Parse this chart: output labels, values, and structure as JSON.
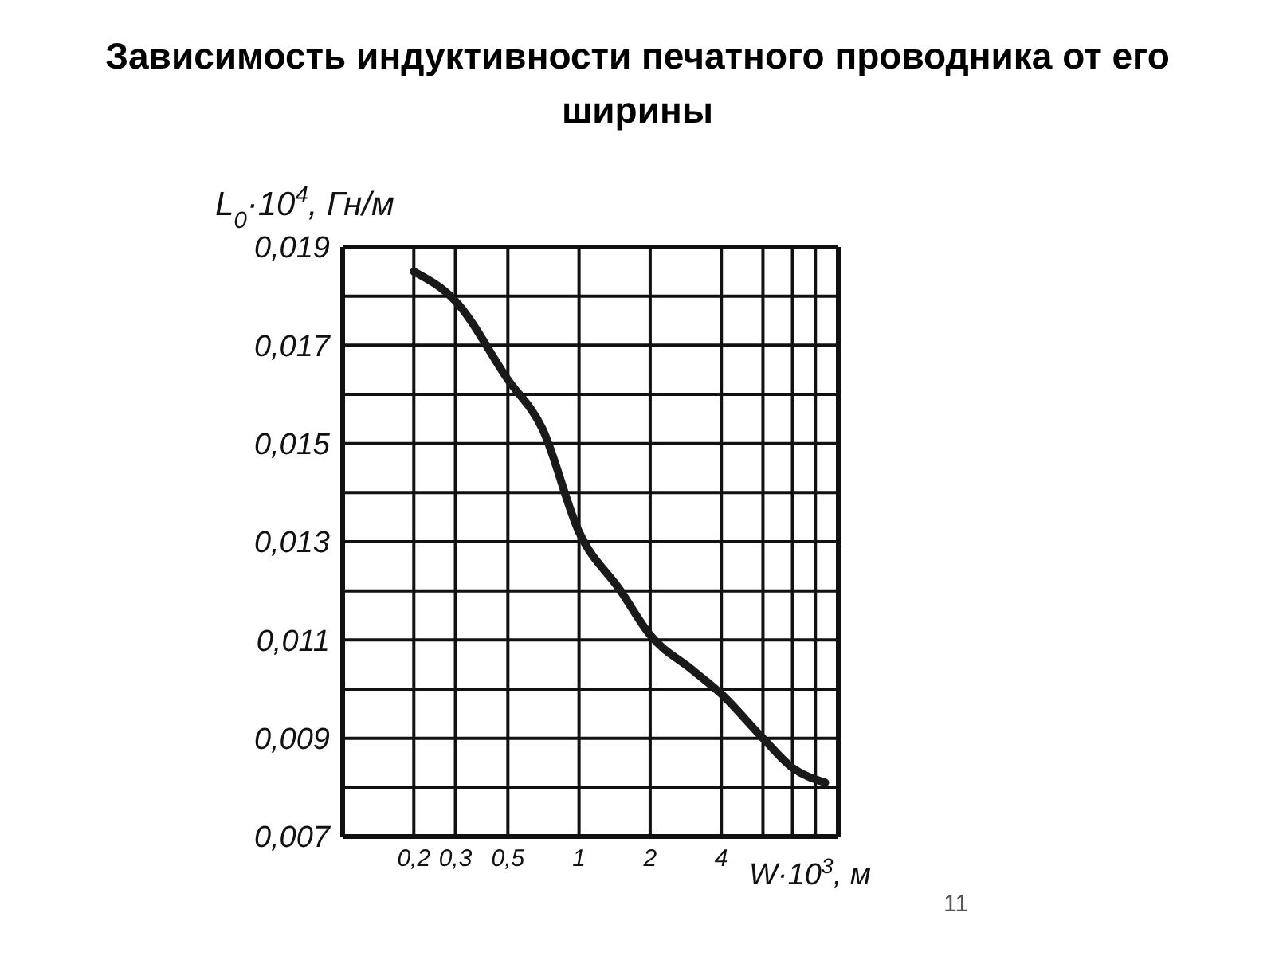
{
  "chart_data": {
    "type": "line",
    "title": "Зависимость индуктивности печатного проводника от его ширины",
    "xlabel": "W·10$^{3}$, м",
    "ylabel": "L$_{0}$·10$^{4}$, Гн/м",
    "log": "x",
    "grid": true,
    "legend": false,
    "marker": "none",
    "line_style": "solid",
    "x": [
      0.2,
      0.3,
      0.5,
      0.7,
      1,
      1.5,
      2,
      3,
      4,
      6,
      8,
      11
    ],
    "series": [
      {
        "color": "#1a1a1a",
        "values": [
          0.0185,
          0.0179,
          0.0163,
          0.0153,
          0.0132,
          0.012,
          0.0111,
          0.0104,
          0.0099,
          0.009,
          0.0084,
          0.0081
        ]
      }
    ],
    "xlim": [
      0.1,
      12.5
    ],
    "xticks": [
      {
        "value": 0.2,
        "label": "0,2"
      },
      {
        "value": 0.3,
        "label": "0,3"
      },
      {
        "value": 0.5,
        "label": "0,5"
      },
      {
        "value": 1,
        "label": "1"
      },
      {
        "value": 2,
        "label": "2"
      },
      {
        "value": 4,
        "label": "4"
      },
      {
        "value": 6,
        "label": null
      },
      {
        "value": 8,
        "label": null
      },
      {
        "value": 10,
        "label": null
      }
    ],
    "ylim": [
      0.007,
      0.019
    ],
    "yticks": [
      {
        "value": 0.007,
        "label": "0,007"
      },
      {
        "value": 0.008,
        "label": null
      },
      {
        "value": 0.009,
        "label": "0,009"
      },
      {
        "value": 0.01,
        "label": null
      },
      {
        "value": 0.011,
        "label": "0,011"
      },
      {
        "value": 0.012,
        "label": null
      },
      {
        "value": 0.013,
        "label": "0,013"
      },
      {
        "value": 0.014,
        "label": null
      },
      {
        "value": 0.015,
        "label": "0,015"
      },
      {
        "value": 0.016,
        "label": null
      },
      {
        "value": 0.017,
        "label": "0,017"
      },
      {
        "value": 0.018,
        "label": null
      },
      {
        "value": 0.019,
        "label": "0,019"
      }
    ],
    "annotations": [
      "11"
    ]
  }
}
